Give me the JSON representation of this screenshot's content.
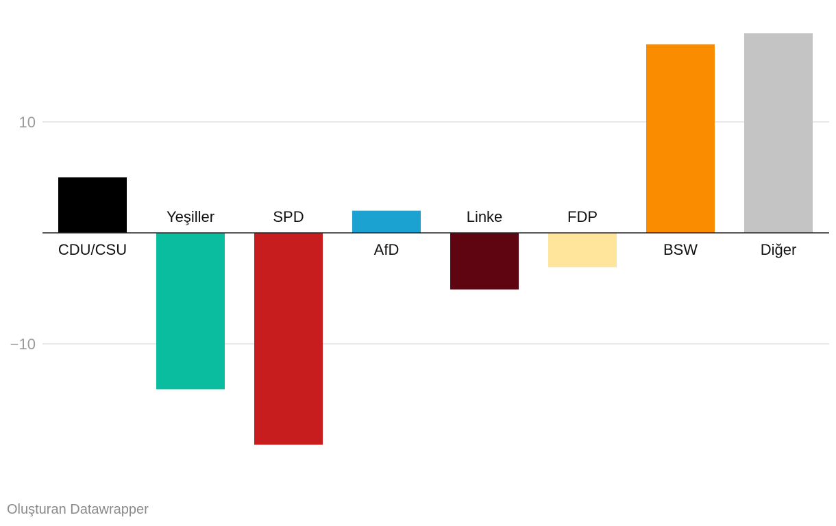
{
  "chart_data": {
    "type": "bar",
    "categories": [
      "CDU/CSU",
      "Yeşiller",
      "SPD",
      "AfD",
      "Linke",
      "FDP",
      "BSW",
      "Diğer"
    ],
    "values": [
      5.0,
      -14.1,
      -19.1,
      2.0,
      -5.1,
      -3.1,
      17.0,
      18.0
    ],
    "colors": [
      "#000000",
      "#0bbd9f",
      "#c81d1f",
      "#1ba2d0",
      "#5f0511",
      "#ffe49c",
      "#fa8c00",
      "#c4c4c4"
    ],
    "yticks": [
      10,
      -10
    ],
    "ytick_labels": [
      "10",
      "−10"
    ],
    "ylim": [
      -21,
      19
    ],
    "grid": true,
    "title": "",
    "xlabel": "",
    "ylabel": ""
  },
  "footer": {
    "credit": "Oluşturan Datawrapper"
  }
}
